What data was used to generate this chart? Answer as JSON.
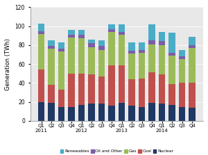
{
  "quarters": [
    "Q1\n2011",
    "Q2",
    "Q3",
    "Q4",
    "Q1\n2012",
    "Q2",
    "Q3",
    "Q4",
    "Q1\n2013",
    "Q2",
    "Q3",
    "Q4",
    "Q1\n2014",
    "Q2",
    "Q3",
    "Q4"
  ],
  "nuclear": [
    20,
    19,
    15,
    15,
    17,
    18,
    18,
    16,
    19,
    16,
    15,
    19,
    18,
    17,
    15,
    14
  ],
  "coal": [
    34,
    19,
    18,
    35,
    33,
    31,
    29,
    43,
    40,
    28,
    30,
    32,
    31,
    22,
    25,
    26
  ],
  "gas": [
    38,
    38,
    40,
    38,
    37,
    29,
    28,
    35,
    32,
    27,
    27,
    30,
    31,
    30,
    25,
    37
  ],
  "oil_other": [
    3,
    3,
    3,
    3,
    4,
    4,
    4,
    3,
    3,
    3,
    3,
    4,
    4,
    3,
    3,
    3
  ],
  "renewables": [
    8,
    6,
    7,
    5,
    5,
    4,
    6,
    5,
    8,
    9,
    8,
    17,
    10,
    21,
    7,
    9
  ],
  "colors": {
    "nuclear": "#1F3864",
    "coal": "#C0504D",
    "gas": "#9BBB59",
    "oil_other": "#7B5EA7",
    "renewables": "#4BACC6"
  },
  "ylabel": "Generation (TWh)",
  "ylim": [
    0,
    120
  ],
  "yticks": [
    0,
    20,
    40,
    60,
    80,
    100,
    120
  ],
  "legend_labels": [
    "Renewables",
    "Oil and Other",
    "Gas",
    "Coal",
    "Nuclear"
  ],
  "background_color": "#ffffff",
  "plot_bg_color": "#e8e8e8"
}
